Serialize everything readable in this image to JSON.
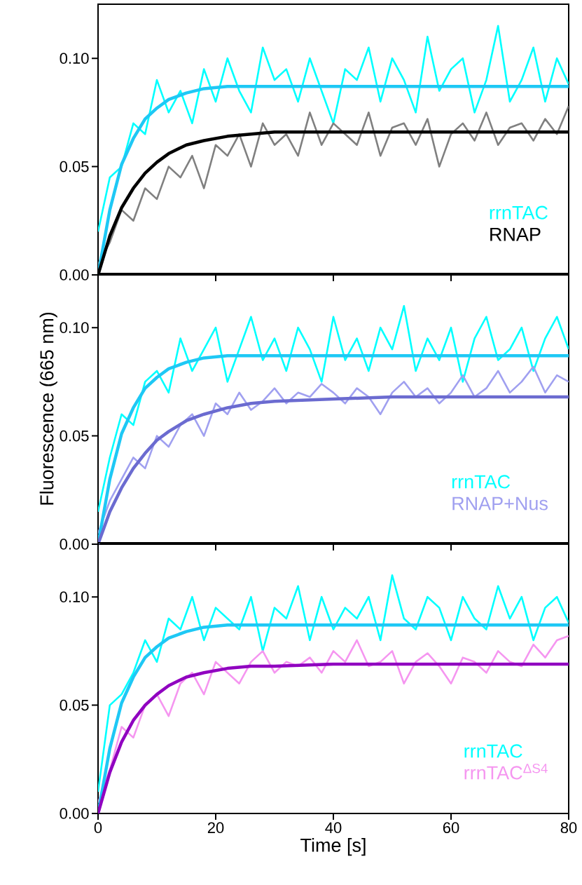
{
  "chart_data": [
    {
      "type": "line",
      "xlim": [
        0,
        80
      ],
      "ylim": [
        0,
        0.125
      ],
      "xticks": [
        0,
        20,
        40,
        60,
        80
      ],
      "yticks": [
        {
          "value": 0,
          "label": "0.00"
        },
        {
          "value": 0.05,
          "label": "0.05"
        },
        {
          "value": 0.1,
          "label": "0.10"
        }
      ],
      "tick_labels": "y",
      "legend": "bottom right",
      "line_style": "solid",
      "series": [
        {
          "name": "rrnTAC",
          "color": "#00ffff",
          "x": [
            0,
            2,
            4,
            6,
            8,
            10,
            12,
            14,
            16,
            18,
            20,
            22,
            24,
            26,
            28,
            30,
            32,
            34,
            36,
            38,
            40,
            42,
            44,
            46,
            48,
            50,
            52,
            54,
            56,
            58,
            60,
            62,
            64,
            66,
            68,
            70,
            72,
            74,
            76,
            78,
            80
          ],
          "values": [
            0.02,
            0.045,
            0.05,
            0.07,
            0.065,
            0.09,
            0.075,
            0.085,
            0.07,
            0.095,
            0.08,
            0.1,
            0.085,
            0.075,
            0.105,
            0.09,
            0.095,
            0.08,
            0.1,
            0.085,
            0.07,
            0.095,
            0.09,
            0.105,
            0.08,
            0.1,
            0.09,
            0.075,
            0.11,
            0.085,
            0.095,
            0.1,
            0.075,
            0.09,
            0.115,
            0.08,
            0.09,
            0.105,
            0.08,
            0.1,
            0.088
          ]
        },
        {
          "color": "#808080",
          "x": [
            0,
            2,
            4,
            6,
            8,
            10,
            12,
            14,
            16,
            18,
            20,
            22,
            24,
            26,
            28,
            30,
            32,
            34,
            36,
            38,
            40,
            42,
            44,
            46,
            48,
            50,
            52,
            54,
            56,
            58,
            60,
            62,
            64,
            66,
            68,
            70,
            72,
            74,
            76,
            78,
            80
          ],
          "values": [
            0.005,
            0.015,
            0.03,
            0.025,
            0.04,
            0.035,
            0.05,
            0.045,
            0.055,
            0.04,
            0.06,
            0.055,
            0.065,
            0.05,
            0.07,
            0.06,
            0.065,
            0.055,
            0.075,
            0.06,
            0.07,
            0.065,
            0.06,
            0.075,
            0.055,
            0.068,
            0.07,
            0.06,
            0.072,
            0.05,
            0.065,
            0.07,
            0.062,
            0.075,
            0.06,
            0.068,
            0.07,
            0.062,
            0.072,
            0.065,
            0.078
          ]
        },
        {
          "color": "#1ec8f5",
          "x": [
            0,
            2,
            4,
            6,
            8,
            10,
            12,
            15,
            18,
            22,
            26,
            30,
            40,
            50,
            60,
            70,
            80
          ],
          "values": [
            0,
            0.03,
            0.051,
            0.063,
            0.072,
            0.077,
            0.081,
            0.084,
            0.086,
            0.087,
            0.087,
            0.087,
            0.087,
            0.087,
            0.087,
            0.087,
            0.087
          ]
        },
        {
          "name": "RNAP",
          "color": "#000000",
          "x": [
            0,
            2,
            4,
            6,
            8,
            10,
            12,
            15,
            18,
            22,
            26,
            30,
            40,
            50,
            60,
            70,
            80
          ],
          "values": [
            0,
            0.018,
            0.031,
            0.04,
            0.047,
            0.052,
            0.056,
            0.06,
            0.062,
            0.064,
            0.065,
            0.066,
            0.066,
            0.066,
            0.066,
            0.066,
            0.066
          ]
        }
      ]
    },
    {
      "type": "line",
      "xlim": [
        0,
        80
      ],
      "ylim": [
        0,
        0.125
      ],
      "xticks": [
        0,
        20,
        40,
        60,
        80
      ],
      "yticks": [
        {
          "value": 0,
          "label": "0.00"
        },
        {
          "value": 0.05,
          "label": "0.05"
        },
        {
          "value": 0.1,
          "label": "0.10"
        }
      ],
      "tick_labels": "y",
      "legend": "bottom right",
      "line_style": "solid",
      "ylabel": "Fluorescence (665 nm)",
      "series": [
        {
          "name": "rrnTAC",
          "color": "#00ffff",
          "x": [
            0,
            2,
            4,
            6,
            8,
            10,
            12,
            14,
            16,
            18,
            20,
            22,
            24,
            26,
            28,
            30,
            32,
            34,
            36,
            38,
            40,
            42,
            44,
            46,
            48,
            50,
            52,
            54,
            56,
            58,
            60,
            62,
            64,
            66,
            68,
            70,
            72,
            74,
            76,
            78,
            80
          ],
          "values": [
            0.015,
            0.04,
            0.06,
            0.055,
            0.075,
            0.08,
            0.07,
            0.095,
            0.08,
            0.09,
            0.1,
            0.075,
            0.09,
            0.105,
            0.085,
            0.095,
            0.08,
            0.1,
            0.09,
            0.075,
            0.105,
            0.085,
            0.095,
            0.08,
            0.1,
            0.09,
            0.11,
            0.08,
            0.095,
            0.085,
            0.1,
            0.075,
            0.095,
            0.105,
            0.085,
            0.09,
            0.1,
            0.08,
            0.095,
            0.105,
            0.09
          ]
        },
        {
          "name": "RNAP+Nus",
          "color": "#a0a0f0",
          "x": [
            0,
            2,
            4,
            6,
            8,
            10,
            12,
            14,
            16,
            18,
            20,
            22,
            24,
            26,
            28,
            30,
            32,
            34,
            36,
            38,
            40,
            42,
            44,
            46,
            48,
            50,
            52,
            54,
            56,
            58,
            60,
            62,
            64,
            66,
            68,
            70,
            72,
            74,
            76,
            78,
            80
          ],
          "values": [
            0.005,
            0.02,
            0.03,
            0.04,
            0.035,
            0.05,
            0.045,
            0.055,
            0.06,
            0.05,
            0.065,
            0.06,
            0.07,
            0.062,
            0.066,
            0.072,
            0.065,
            0.07,
            0.068,
            0.074,
            0.07,
            0.065,
            0.072,
            0.068,
            0.06,
            0.07,
            0.075,
            0.068,
            0.072,
            0.065,
            0.07,
            0.078,
            0.068,
            0.072,
            0.08,
            0.07,
            0.075,
            0.082,
            0.07,
            0.078,
            0.075
          ]
        },
        {
          "color": "#1ec8f5",
          "x": [
            0,
            2,
            4,
            6,
            8,
            10,
            12,
            15,
            18,
            22,
            26,
            30,
            40,
            50,
            60,
            70,
            80
          ],
          "values": [
            0,
            0.03,
            0.051,
            0.063,
            0.072,
            0.077,
            0.081,
            0.084,
            0.086,
            0.087,
            0.087,
            0.087,
            0.087,
            0.087,
            0.087,
            0.087,
            0.087
          ]
        },
        {
          "color": "#6b6bd0",
          "x": [
            0,
            2,
            4,
            6,
            8,
            10,
            12,
            15,
            18,
            22,
            26,
            30,
            40,
            50,
            60,
            70,
            80
          ],
          "values": [
            0,
            0.015,
            0.026,
            0.035,
            0.042,
            0.048,
            0.052,
            0.057,
            0.06,
            0.063,
            0.065,
            0.066,
            0.067,
            0.068,
            0.068,
            0.068,
            0.068
          ]
        }
      ]
    },
    {
      "type": "line",
      "xlim": [
        0,
        80
      ],
      "ylim": [
        0,
        0.125
      ],
      "xticks": [
        0,
        20,
        40,
        60,
        80
      ],
      "yticks": [
        {
          "value": 0,
          "label": "0.00"
        },
        {
          "value": 0.05,
          "label": "0.05"
        },
        {
          "value": 0.1,
          "label": "0.10"
        }
      ],
      "legend": "bottom right",
      "line_style": "solid",
      "xlabel": "Time [s]",
      "series": [
        {
          "name": "rrnTAC",
          "color": "#00ffff",
          "x": [
            0,
            2,
            4,
            6,
            8,
            10,
            12,
            14,
            16,
            18,
            20,
            22,
            24,
            26,
            28,
            30,
            32,
            34,
            36,
            38,
            40,
            42,
            44,
            46,
            48,
            50,
            52,
            54,
            56,
            58,
            60,
            62,
            64,
            66,
            68,
            70,
            72,
            74,
            76,
            78,
            80
          ],
          "values": [
            0.01,
            0.05,
            0.055,
            0.065,
            0.08,
            0.07,
            0.09,
            0.085,
            0.1,
            0.08,
            0.095,
            0.09,
            0.085,
            0.1,
            0.075,
            0.095,
            0.09,
            0.105,
            0.08,
            0.1,
            0.085,
            0.095,
            0.09,
            0.1,
            0.08,
            0.11,
            0.09,
            0.085,
            0.1,
            0.095,
            0.08,
            0.1,
            0.09,
            0.085,
            0.105,
            0.09,
            0.1,
            0.08,
            0.095,
            0.1,
            0.088
          ]
        },
        {
          "name": "rrnTAC$^{ΔS4}$",
          "color": "#f596f0",
          "x": [
            0,
            2,
            4,
            6,
            8,
            10,
            12,
            14,
            16,
            18,
            20,
            22,
            24,
            26,
            28,
            30,
            32,
            34,
            36,
            38,
            40,
            42,
            44,
            46,
            48,
            50,
            52,
            54,
            56,
            58,
            60,
            62,
            64,
            66,
            68,
            70,
            72,
            74,
            76,
            78,
            80
          ],
          "values": [
            0.005,
            0.02,
            0.04,
            0.035,
            0.05,
            0.055,
            0.045,
            0.06,
            0.065,
            0.055,
            0.07,
            0.065,
            0.06,
            0.07,
            0.075,
            0.065,
            0.07,
            0.068,
            0.072,
            0.065,
            0.075,
            0.07,
            0.08,
            0.068,
            0.07,
            0.075,
            0.06,
            0.07,
            0.074,
            0.068,
            0.06,
            0.072,
            0.07,
            0.065,
            0.075,
            0.07,
            0.068,
            0.078,
            0.072,
            0.08,
            0.082
          ]
        },
        {
          "color": "#1ec8f5",
          "x": [
            0,
            2,
            4,
            6,
            8,
            10,
            12,
            15,
            18,
            22,
            26,
            30,
            40,
            50,
            60,
            70,
            80
          ],
          "values": [
            0,
            0.03,
            0.051,
            0.063,
            0.072,
            0.077,
            0.081,
            0.084,
            0.086,
            0.087,
            0.087,
            0.087,
            0.087,
            0.087,
            0.087,
            0.087,
            0.087
          ]
        },
        {
          "color": "#9000c0",
          "x": [
            0,
            2,
            4,
            6,
            8,
            10,
            12,
            15,
            18,
            22,
            26,
            30,
            40,
            50,
            60,
            70,
            80
          ],
          "values": [
            0,
            0.019,
            0.033,
            0.043,
            0.05,
            0.055,
            0.059,
            0.063,
            0.065,
            0.067,
            0.068,
            0.068,
            0.069,
            0.069,
            0.069,
            0.069,
            0.069
          ]
        }
      ]
    }
  ]
}
